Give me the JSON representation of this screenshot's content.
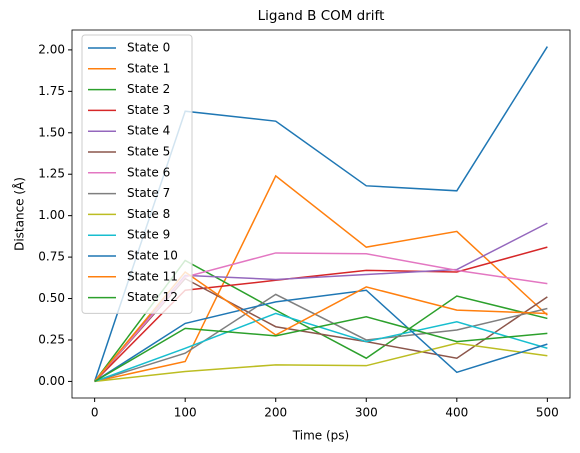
{
  "chart_data": {
    "type": "line",
    "title": "Ligand B COM drift",
    "x_label": "Time (ps)",
    "y_label": "Distance (Å)",
    "x": [
      0,
      100,
      200,
      300,
      400,
      500
    ],
    "xlim": [
      -25,
      525
    ],
    "xticks": [
      0,
      100,
      200,
      300,
      400,
      500
    ],
    "ylim": [
      -0.1,
      2.12
    ],
    "yticks": [
      {
        "value": 0,
        "label": "0.00"
      },
      {
        "value": 0.25,
        "label": "0.25"
      },
      {
        "value": 0.5,
        "label": "0.50"
      },
      {
        "value": 0.75,
        "label": "0.75"
      },
      {
        "value": 1,
        "label": "1.00"
      },
      {
        "value": 1.25,
        "label": "1.25"
      },
      {
        "value": 1.5,
        "label": "1.50"
      },
      {
        "value": 1.75,
        "label": "1.75"
      },
      {
        "value": 2,
        "label": "2.00"
      }
    ],
    "legend": "upper left",
    "series": [
      {
        "name": "State 0",
        "color": "#1f77b4",
        "values": [
          0,
          1.63,
          1.57,
          1.18,
          1.15,
          2.02
        ]
      },
      {
        "name": "State 1",
        "color": "#ff7f0e",
        "values": [
          0,
          0.12,
          1.24,
          0.81,
          0.905,
          0.4
        ]
      },
      {
        "name": "State 2",
        "color": "#2ca02c",
        "values": [
          0,
          0.73,
          0.43,
          0.14,
          0.515,
          0.38
        ]
      },
      {
        "name": "State 3",
        "color": "#d62728",
        "values": [
          0,
          0.55,
          0.61,
          0.67,
          0.66,
          0.81
        ]
      },
      {
        "name": "State 4",
        "color": "#9467bd",
        "values": [
          0,
          0.64,
          0.615,
          0.645,
          0.675,
          0.955
        ]
      },
      {
        "name": "State 5",
        "color": "#8c564b",
        "values": [
          0,
          0.62,
          0.33,
          0.24,
          0.14,
          0.51
        ]
      },
      {
        "name": "State 6",
        "color": "#e377c2",
        "values": [
          0,
          0.63,
          0.775,
          0.77,
          0.67,
          0.59
        ]
      },
      {
        "name": "State 7",
        "color": "#7f7f7f",
        "values": [
          0,
          0.17,
          0.525,
          0.25,
          0.31,
          0.44
        ]
      },
      {
        "name": "State 8",
        "color": "#bcbd22",
        "values": [
          0,
          0.06,
          0.1,
          0.095,
          0.23,
          0.155
        ]
      },
      {
        "name": "State 9",
        "color": "#17becf",
        "values": [
          0,
          0.2,
          0.41,
          0.24,
          0.36,
          0.2
        ]
      },
      {
        "name": "State 10",
        "color": "#1f77b4",
        "values": [
          0,
          0.35,
          0.48,
          0.55,
          0.055,
          0.225
        ]
      },
      {
        "name": "State 11",
        "color": "#ff7f0e",
        "values": [
          0,
          0.66,
          0.28,
          0.57,
          0.43,
          0.41
        ]
      },
      {
        "name": "State 12",
        "color": "#2ca02c",
        "values": [
          0,
          0.32,
          0.275,
          0.39,
          0.24,
          0.29
        ]
      }
    ]
  }
}
